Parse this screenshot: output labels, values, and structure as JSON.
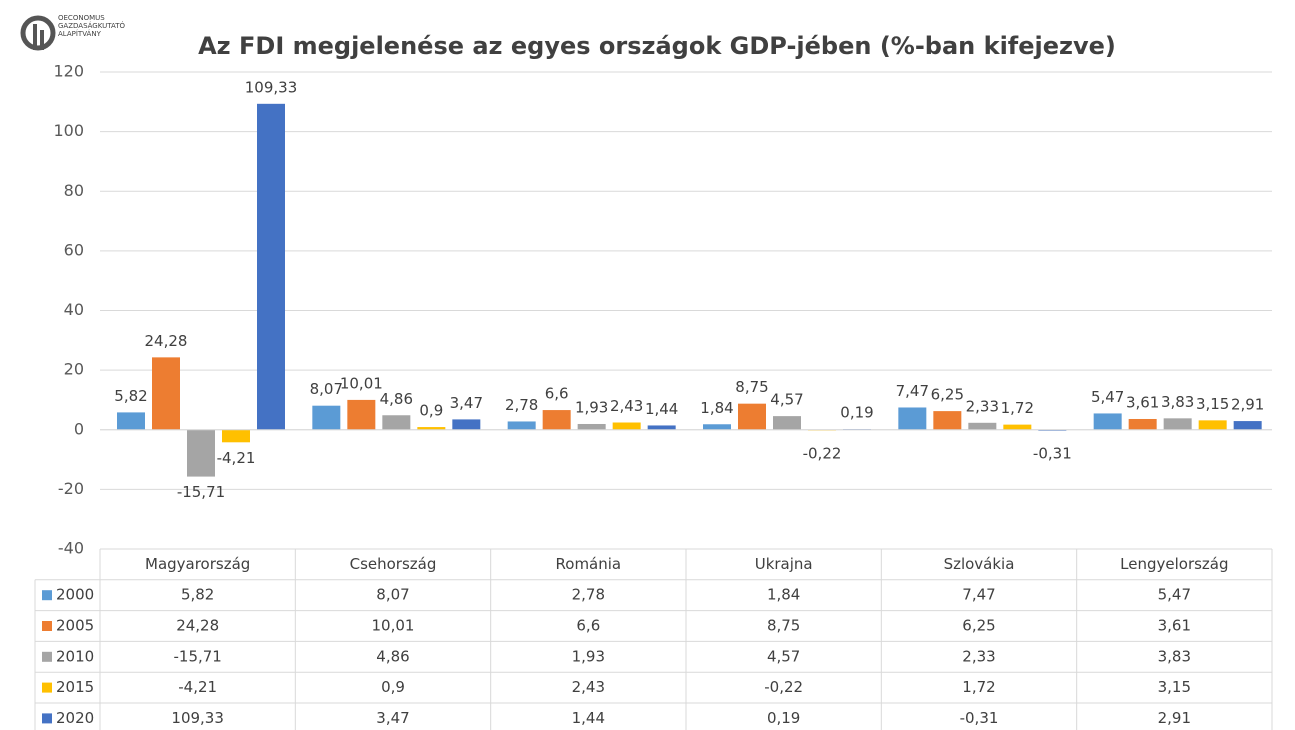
{
  "logo": [
    "OECONOMUS",
    "GAZDASÁGKUTATÓ",
    "ALAPÍTVÁNY"
  ],
  "chart_data": {
    "type": "bar",
    "title": "Az FDI megjelenése az egyes országok GDP-jében (%-ban kifejezve)",
    "categories": [
      "Magyarország",
      "Csehország",
      "Románia",
      "Ukrajna",
      "Szlovákia",
      "Lengyelország"
    ],
    "series": [
      {
        "name": "2000",
        "color": "#5b9bd5",
        "values": [
          5.82,
          8.07,
          2.78,
          1.84,
          7.47,
          5.47
        ],
        "value_labels": [
          "5,82",
          "8,07",
          "2,78",
          "1,84",
          "7,47",
          "5,47"
        ]
      },
      {
        "name": "2005",
        "color": "#ed7d31",
        "values": [
          24.28,
          10.01,
          6.6,
          8.75,
          6.25,
          3.61
        ],
        "value_labels": [
          "24,28",
          "10,01",
          "6,6",
          "8,75",
          "6,25",
          "3,61"
        ]
      },
      {
        "name": "2010",
        "color": "#a5a5a5",
        "values": [
          -15.71,
          4.86,
          1.93,
          4.57,
          2.33,
          3.83
        ],
        "value_labels": [
          "-15,71",
          "4,86",
          "1,93",
          "4,57",
          "2,33",
          "3,83"
        ]
      },
      {
        "name": "2015",
        "color": "#ffc000",
        "values": [
          -4.21,
          0.9,
          2.43,
          -0.22,
          1.72,
          3.15
        ],
        "value_labels": [
          "-4,21",
          "0,9",
          "2,43",
          "-0,22",
          "1,72",
          "3,15"
        ]
      },
      {
        "name": "2020",
        "color": "#4472c4",
        "values": [
          109.33,
          3.47,
          1.44,
          0.19,
          -0.31,
          2.91
        ],
        "value_labels": [
          "109,33",
          "3,47",
          "1,44",
          "0,19",
          "-0,31",
          "2,91"
        ]
      }
    ],
    "ylim": [
      -40,
      120
    ],
    "yticks": [
      -40,
      -20,
      0,
      20,
      40,
      60,
      80,
      100,
      120
    ],
    "grid": true,
    "data_table": true
  }
}
